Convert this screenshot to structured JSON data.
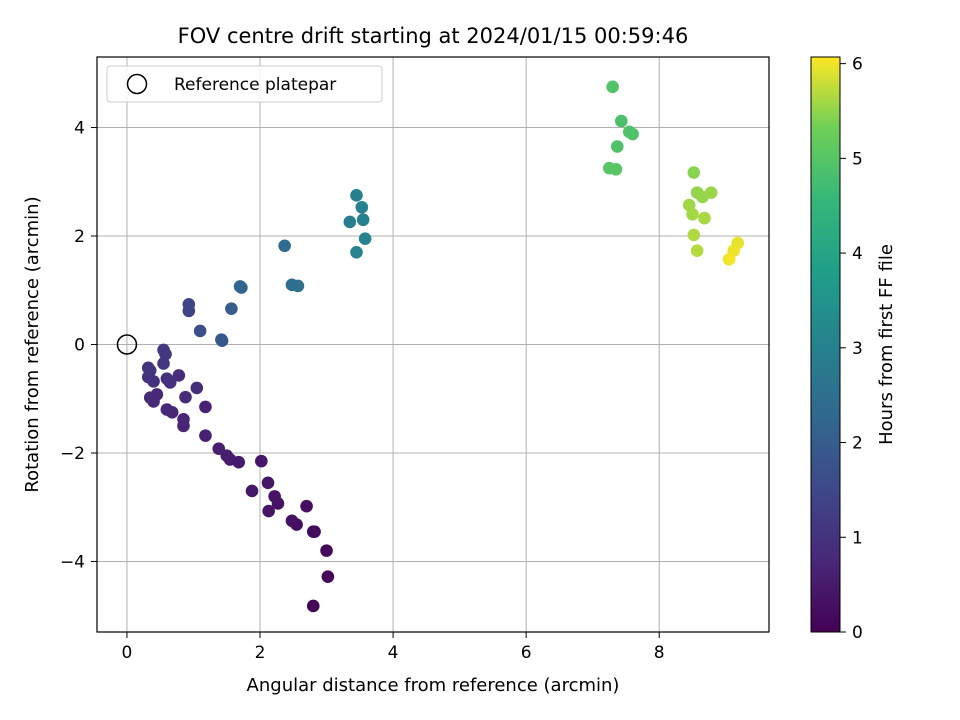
{
  "chart_data": {
    "type": "scatter",
    "title": "FOV centre drift starting at 2024/01/15 00:59:46",
    "xlabel": "Angular distance from reference (arcmin)",
    "ylabel": "Rotation from reference (arcmin)",
    "xlim": [
      -0.45,
      9.65
    ],
    "ylim": [
      -5.3,
      5.3
    ],
    "xticks": [
      0,
      2,
      4,
      6,
      8
    ],
    "yticks": [
      -4,
      -2,
      0,
      2,
      4
    ],
    "xtick_labels": [
      "0",
      "2",
      "4",
      "6",
      "8"
    ],
    "ytick_labels": [
      "−4",
      "−2",
      "0",
      "2",
      "4"
    ],
    "grid": true,
    "legend": {
      "position": "top-left",
      "entries": [
        "Reference platepar"
      ]
    },
    "reference_point": {
      "x": 0,
      "y": 0,
      "marker": "open-circle"
    },
    "colorbar": {
      "label": "Hours from first FF file",
      "colormap": "viridis",
      "range": [
        0,
        6.07
      ],
      "ticks": [
        0,
        1,
        2,
        3,
        4,
        5,
        6
      ],
      "tick_labels": [
        "0",
        "1",
        "2",
        "3",
        "4",
        "5",
        "6"
      ]
    },
    "points": [
      {
        "x": 2.8,
        "y": -4.82,
        "h": 0.05
      },
      {
        "x": 3.02,
        "y": -4.28,
        "h": 0.1
      },
      {
        "x": 3.0,
        "y": -3.8,
        "h": 0.15
      },
      {
        "x": 2.82,
        "y": -3.45,
        "h": 0.2
      },
      {
        "x": 2.8,
        "y": -3.45,
        "h": 0.22
      },
      {
        "x": 2.7,
        "y": -2.98,
        "h": 0.25
      },
      {
        "x": 2.55,
        "y": -3.32,
        "h": 0.28
      },
      {
        "x": 2.48,
        "y": -3.25,
        "h": 0.3
      },
      {
        "x": 2.27,
        "y": -2.93,
        "h": 0.33
      },
      {
        "x": 2.22,
        "y": -2.8,
        "h": 0.35
      },
      {
        "x": 2.13,
        "y": -3.07,
        "h": 0.38
      },
      {
        "x": 2.12,
        "y": -2.55,
        "h": 0.4
      },
      {
        "x": 2.02,
        "y": -2.15,
        "h": 0.42
      },
      {
        "x": 1.88,
        "y": -2.7,
        "h": 0.45
      },
      {
        "x": 1.68,
        "y": -2.17,
        "h": 0.5
      },
      {
        "x": 1.55,
        "y": -2.12,
        "h": 0.52
      },
      {
        "x": 1.5,
        "y": -2.05,
        "h": 0.55
      },
      {
        "x": 1.38,
        "y": -1.92,
        "h": 0.58
      },
      {
        "x": 1.18,
        "y": -1.68,
        "h": 0.62
      },
      {
        "x": 1.18,
        "y": -1.15,
        "h": 0.65
      },
      {
        "x": 0.85,
        "y": -1.5,
        "h": 0.68
      },
      {
        "x": 0.85,
        "y": -1.38,
        "h": 0.7
      },
      {
        "x": 0.68,
        "y": -1.25,
        "h": 0.72
      },
      {
        "x": 0.6,
        "y": -1.2,
        "h": 0.75
      },
      {
        "x": 0.45,
        "y": -0.92,
        "h": 0.78
      },
      {
        "x": 0.4,
        "y": -1.05,
        "h": 0.8
      },
      {
        "x": 0.35,
        "y": -0.98,
        "h": 0.82
      },
      {
        "x": 0.88,
        "y": -0.97,
        "h": 0.85
      },
      {
        "x": 1.05,
        "y": -0.8,
        "h": 0.88
      },
      {
        "x": 0.78,
        "y": -0.57,
        "h": 0.9
      },
      {
        "x": 0.65,
        "y": -0.7,
        "h": 0.92
      },
      {
        "x": 0.6,
        "y": -0.63,
        "h": 0.95
      },
      {
        "x": 0.4,
        "y": -0.68,
        "h": 0.98
      },
      {
        "x": 0.32,
        "y": -0.6,
        "h": 1.0
      },
      {
        "x": 0.32,
        "y": -0.43,
        "h": 1.02
      },
      {
        "x": 0.35,
        "y": -0.48,
        "h": 1.05
      },
      {
        "x": 0.55,
        "y": -0.35,
        "h": 1.08
      },
      {
        "x": 0.58,
        "y": -0.18,
        "h": 1.1
      },
      {
        "x": 0.55,
        "y": -0.1,
        "h": 1.12
      },
      {
        "x": 0.93,
        "y": 0.62,
        "h": 1.4
      },
      {
        "x": 0.93,
        "y": 0.74,
        "h": 1.42
      },
      {
        "x": 1.1,
        "y": 0.25,
        "h": 1.7
      },
      {
        "x": 1.43,
        "y": 0.07,
        "h": 1.85
      },
      {
        "x": 1.42,
        "y": 0.09,
        "h": 1.88
      },
      {
        "x": 1.57,
        "y": 0.66,
        "h": 2.0
      },
      {
        "x": 1.72,
        "y": 1.05,
        "h": 2.2
      },
      {
        "x": 1.7,
        "y": 1.07,
        "h": 2.22
      },
      {
        "x": 2.37,
        "y": 1.82,
        "h": 2.4
      },
      {
        "x": 2.48,
        "y": 1.1,
        "h": 2.45
      },
      {
        "x": 2.57,
        "y": 1.08,
        "h": 2.5
      },
      {
        "x": 3.35,
        "y": 2.26,
        "h": 2.9
      },
      {
        "x": 3.45,
        "y": 2.75,
        "h": 2.95
      },
      {
        "x": 3.53,
        "y": 2.53,
        "h": 3.0
      },
      {
        "x": 3.55,
        "y": 2.3,
        "h": 3.02
      },
      {
        "x": 3.58,
        "y": 1.95,
        "h": 3.05
      },
      {
        "x": 3.45,
        "y": 1.7,
        "h": 3.07
      },
      {
        "x": 7.3,
        "y": 4.75,
        "h": 4.95
      },
      {
        "x": 7.43,
        "y": 4.12,
        "h": 4.85
      },
      {
        "x": 7.55,
        "y": 3.92,
        "h": 4.9
      },
      {
        "x": 7.6,
        "y": 3.88,
        "h": 4.88
      },
      {
        "x": 7.37,
        "y": 3.65,
        "h": 4.92
      },
      {
        "x": 7.25,
        "y": 3.25,
        "h": 5.0
      },
      {
        "x": 7.35,
        "y": 3.23,
        "h": 5.02
      },
      {
        "x": 8.52,
        "y": 3.17,
        "h": 5.45
      },
      {
        "x": 8.57,
        "y": 2.8,
        "h": 5.5
      },
      {
        "x": 8.65,
        "y": 2.72,
        "h": 5.52
      },
      {
        "x": 8.78,
        "y": 2.8,
        "h": 5.55
      },
      {
        "x": 8.45,
        "y": 2.57,
        "h": 5.58
      },
      {
        "x": 8.5,
        "y": 2.4,
        "h": 5.6
      },
      {
        "x": 8.68,
        "y": 2.33,
        "h": 5.62
      },
      {
        "x": 8.52,
        "y": 2.02,
        "h": 5.65
      },
      {
        "x": 8.57,
        "y": 1.73,
        "h": 5.68
      },
      {
        "x": 9.18,
        "y": 1.87,
        "h": 5.95
      },
      {
        "x": 9.12,
        "y": 1.73,
        "h": 5.98
      },
      {
        "x": 9.05,
        "y": 1.57,
        "h": 6.02
      }
    ]
  }
}
